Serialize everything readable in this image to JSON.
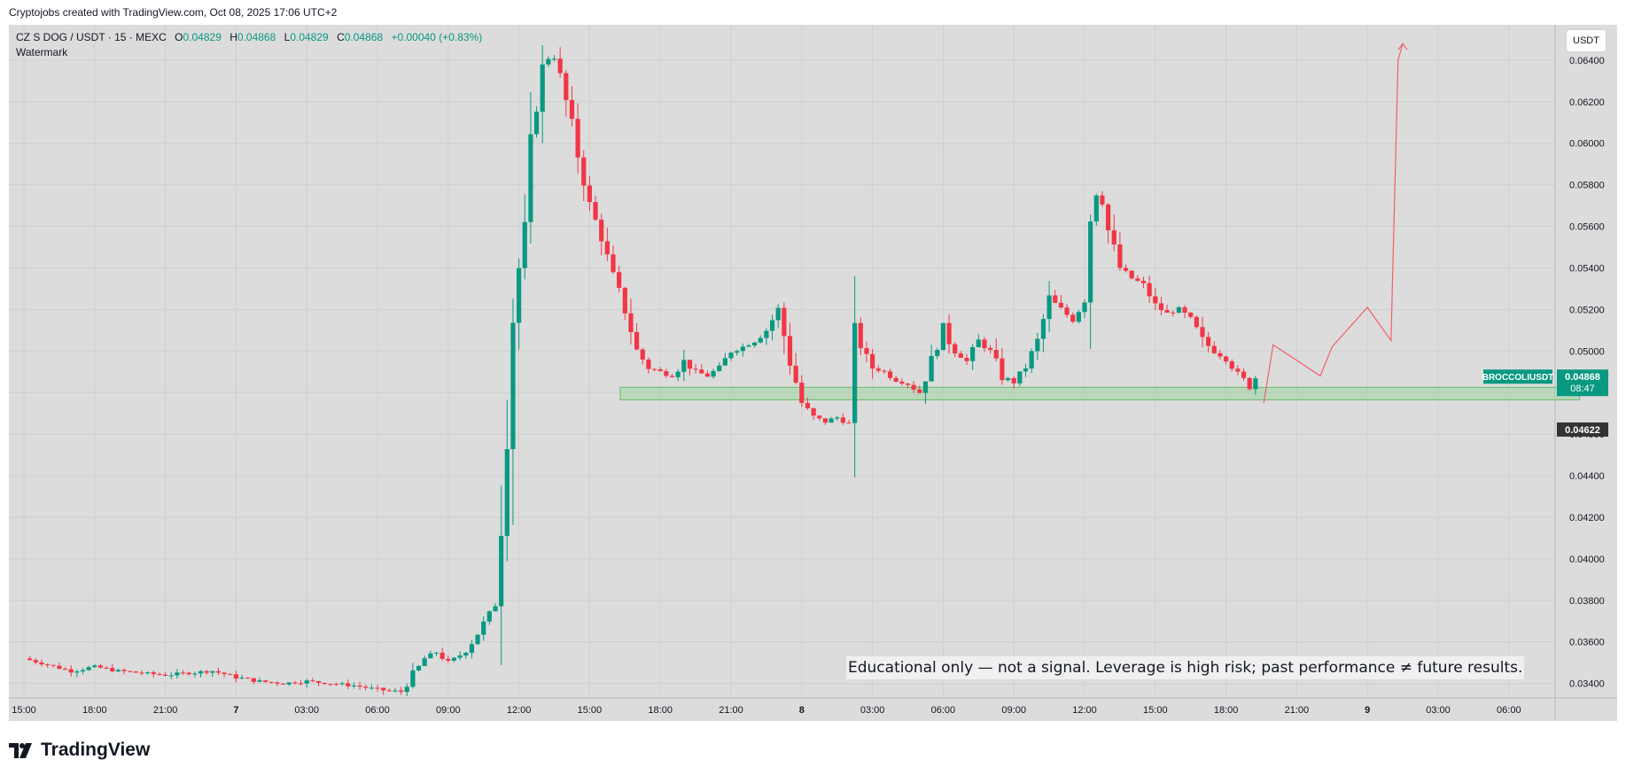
{
  "header": {
    "attribution": "Cryptojobs created with TradingView.com, Oct 08, 2025 17:06 UTC+2"
  },
  "legend": {
    "symbol": "CZ S DOG / USDT · 15 · MEXC",
    "o_label": "O",
    "o_value": "0.04829",
    "h_label": "H",
    "h_value": "0.04868",
    "l_label": "L",
    "l_value": "0.04829",
    "c_label": "C",
    "c_value": "0.04868",
    "change": "+0.00040 (+0.83%)",
    "watermark": "Watermark"
  },
  "currency_button": "USDT",
  "disclaimer": "Educational only — not a signal. Leverage is high risk; past performance ≠ future results.",
  "footer": {
    "brand": "TradingView"
  },
  "colors": {
    "up": "#089981",
    "down": "#f23645",
    "zone": "#a5d6a7",
    "projection": "#f0606a",
    "background": "#dcdcdc"
  },
  "chart_data": {
    "type": "candlestick",
    "title": "CZ S DOG / USDT · 15 · MEXC",
    "interval": "15",
    "ylim": [
      0.0333,
      0.0657
    ],
    "y_ticks": [
      "0.03400",
      "0.03600",
      "0.03800",
      "0.04000",
      "0.04200",
      "0.04400",
      "0.04600",
      "0.04800",
      "0.05000",
      "0.05200",
      "0.05400",
      "0.05600",
      "0.05800",
      "0.06000",
      "0.06200",
      "0.06400"
    ],
    "x_ticks": [
      {
        "label": "15:00",
        "t": 0
      },
      {
        "label": "18:00",
        "t": 3
      },
      {
        "label": "21:00",
        "t": 6
      },
      {
        "label": "7",
        "t": 9
      },
      {
        "label": "03:00",
        "t": 12
      },
      {
        "label": "06:00",
        "t": 15
      },
      {
        "label": "09:00",
        "t": 18
      },
      {
        "label": "12:00",
        "t": 21
      },
      {
        "label": "15:00",
        "t": 24
      },
      {
        "label": "18:00",
        "t": 27
      },
      {
        "label": "21:00",
        "t": 30
      },
      {
        "label": "8",
        "t": 33
      },
      {
        "label": "03:00",
        "t": 36
      },
      {
        "label": "06:00",
        "t": 39
      },
      {
        "label": "09:00",
        "t": 42
      },
      {
        "label": "12:00",
        "t": 45
      },
      {
        "label": "15:00",
        "t": 48
      },
      {
        "label": "18:00",
        "t": 51
      },
      {
        "label": "21:00",
        "t": 54
      },
      {
        "label": "9",
        "t": 57
      },
      {
        "label": "03:00",
        "t": 60
      },
      {
        "label": "06:00",
        "t": 63
      }
    ],
    "price_path": [
      [
        0,
        0.0352
      ],
      [
        1,
        0.0349
      ],
      [
        2,
        0.0346
      ],
      [
        3,
        0.0348
      ],
      [
        4,
        0.0346
      ],
      [
        5,
        0.0345
      ],
      [
        6,
        0.0344
      ],
      [
        7,
        0.0345
      ],
      [
        8,
        0.0346
      ],
      [
        9,
        0.0343
      ],
      [
        10,
        0.0341
      ],
      [
        11,
        0.034
      ],
      [
        12,
        0.0341
      ],
      [
        13,
        0.034
      ],
      [
        14,
        0.0339
      ],
      [
        15,
        0.0337
      ],
      [
        16,
        0.0336
      ],
      [
        17,
        0.0352
      ],
      [
        17.5,
        0.0355
      ],
      [
        18,
        0.035
      ],
      [
        18.7,
        0.0355
      ],
      [
        19.3,
        0.0365
      ],
      [
        20,
        0.0378
      ],
      [
        20.3,
        0.043
      ],
      [
        20.8,
        0.053
      ],
      [
        21.2,
        0.055
      ],
      [
        21.6,
        0.061
      ],
      [
        22,
        0.0635
      ],
      [
        22.4,
        0.0645
      ],
      [
        22.8,
        0.063
      ],
      [
        23.2,
        0.061
      ],
      [
        23.6,
        0.059
      ],
      [
        24,
        0.057
      ],
      [
        24.5,
        0.0555
      ],
      [
        25,
        0.0535
      ],
      [
        25.5,
        0.052
      ],
      [
        26,
        0.05
      ],
      [
        26.5,
        0.0492
      ],
      [
        27,
        0.049
      ],
      [
        27.5,
        0.0488
      ],
      [
        28,
        0.0495
      ],
      [
        28.5,
        0.049
      ],
      [
        29,
        0.0488
      ],
      [
        29.5,
        0.0492
      ],
      [
        30,
        0.05
      ],
      [
        30.5,
        0.0502
      ],
      [
        31,
        0.0505
      ],
      [
        31.5,
        0.051
      ],
      [
        32,
        0.052
      ],
      [
        32.5,
        0.0495
      ],
      [
        33,
        0.0475
      ],
      [
        33.5,
        0.0468
      ],
      [
        34,
        0.0466
      ],
      [
        34.5,
        0.0468
      ],
      [
        35,
        0.0465
      ],
      [
        35.3,
        0.051
      ],
      [
        35.6,
        0.05
      ],
      [
        36,
        0.0492
      ],
      [
        36.5,
        0.049
      ],
      [
        37,
        0.0486
      ],
      [
        37.5,
        0.0484
      ],
      [
        38,
        0.048
      ],
      [
        38.5,
        0.0495
      ],
      [
        39,
        0.051
      ],
      [
        39.5,
        0.05
      ],
      [
        40,
        0.0495
      ],
      [
        40.5,
        0.0505
      ],
      [
        41,
        0.05
      ],
      [
        41.5,
        0.0488
      ],
      [
        42,
        0.0485
      ],
      [
        42.5,
        0.0492
      ],
      [
        43,
        0.0505
      ],
      [
        43.5,
        0.0525
      ],
      [
        44,
        0.052
      ],
      [
        44.5,
        0.0515
      ],
      [
        45,
        0.0525
      ],
      [
        45.3,
        0.0575
      ],
      [
        45.6,
        0.058
      ],
      [
        46,
        0.0558
      ],
      [
        46.5,
        0.054
      ],
      [
        47,
        0.0535
      ],
      [
        47.5,
        0.0532
      ],
      [
        48,
        0.0522
      ],
      [
        48.5,
        0.0518
      ],
      [
        49,
        0.052
      ],
      [
        49.5,
        0.0515
      ],
      [
        50,
        0.0505
      ],
      [
        50.5,
        0.05
      ],
      [
        51,
        0.0496
      ],
      [
        51.5,
        0.0489
      ],
      [
        52,
        0.0483
      ],
      [
        52.3,
        0.04868
      ]
    ],
    "last_price": "0.04868",
    "last_price_label": "BROCCOLIUSDT",
    "countdown": "08:47",
    "hover_price": "0.04622",
    "support_zone": {
      "t_start": 25.3,
      "t_end": 66,
      "low": 0.04765,
      "high": 0.04825
    },
    "projection_path": [
      [
        52.6,
        0.0475
      ],
      [
        53,
        0.0503
      ],
      [
        55,
        0.0488
      ],
      [
        55.5,
        0.0502
      ],
      [
        57,
        0.0521
      ],
      [
        58,
        0.0505
      ],
      [
        58.3,
        0.064
      ],
      [
        58.5,
        0.0648
      ]
    ]
  }
}
